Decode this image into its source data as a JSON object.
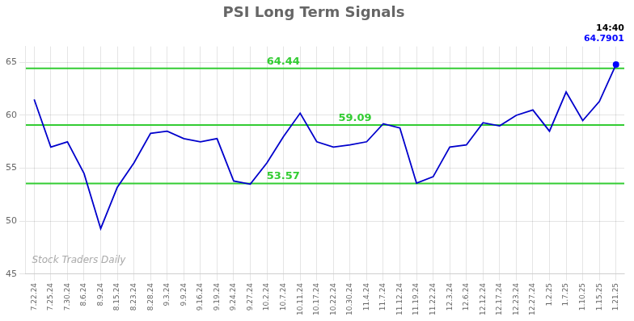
{
  "chart_data": {
    "type": "line",
    "title": "PSI Long Term Signals",
    "categories": [
      "7.22.24",
      "7.25.24",
      "7.30.24",
      "8.6.24",
      "8.9.24",
      "8.15.24",
      "8.23.24",
      "8.28.24",
      "9.3.24",
      "9.9.24",
      "9.16.24",
      "9.19.24",
      "9.24.24",
      "9.27.24",
      "10.2.24",
      "10.7.24",
      "10.11.24",
      "10.17.24",
      "10.22.24",
      "10.30.24",
      "11.4.24",
      "11.7.24",
      "11.12.24",
      "11.19.24",
      "11.22.24",
      "12.3.24",
      "12.6.24",
      "12.12.24",
      "12.17.24",
      "12.23.24",
      "12.27.24",
      "1.2.25",
      "1.7.25",
      "1.10.25",
      "1.15.25",
      "1.21.25"
    ],
    "series": [
      {
        "type": "line",
        "color": "#0000cc",
        "marker": "none",
        "values": [
          61.5,
          57.0,
          57.5,
          54.5,
          49.3,
          53.2,
          55.5,
          58.3,
          58.5,
          57.8,
          57.5,
          57.8,
          53.8,
          53.5,
          55.5,
          58.0,
          60.2,
          57.5,
          57.0,
          57.2,
          57.5,
          59.2,
          58.8,
          53.6,
          54.2,
          57.0,
          57.2,
          59.3,
          59.0,
          60.0,
          60.5,
          58.5,
          62.2,
          59.5,
          61.3,
          64.79
        ]
      },
      {
        "type": "scatter",
        "color": "#0000ff",
        "marker": "circle",
        "values": [
          null,
          null,
          null,
          null,
          null,
          null,
          null,
          null,
          null,
          null,
          null,
          null,
          null,
          null,
          null,
          null,
          null,
          null,
          null,
          null,
          null,
          null,
          null,
          null,
          null,
          null,
          null,
          null,
          null,
          null,
          null,
          null,
          null,
          null,
          null,
          64.79
        ]
      }
    ],
    "hlines": [
      {
        "value": 64.44,
        "label": "64.44",
        "color": "#33cc33"
      },
      {
        "value": 59.09,
        "label": "59.09",
        "color": "#33cc33"
      },
      {
        "value": 53.57,
        "label": "53.57",
        "color": "#33cc33"
      }
    ],
    "annotations": [
      {
        "text": "14:40",
        "color": "#000000"
      },
      {
        "text": "64.7901",
        "color": "#0000ff"
      }
    ],
    "watermark": {
      "text": "Stock Traders Daily",
      "color": "#aaaaaa"
    },
    "ylim": [
      45,
      66.5
    ],
    "yticks": [
      45,
      50,
      55,
      60,
      65
    ],
    "grid": true
  }
}
